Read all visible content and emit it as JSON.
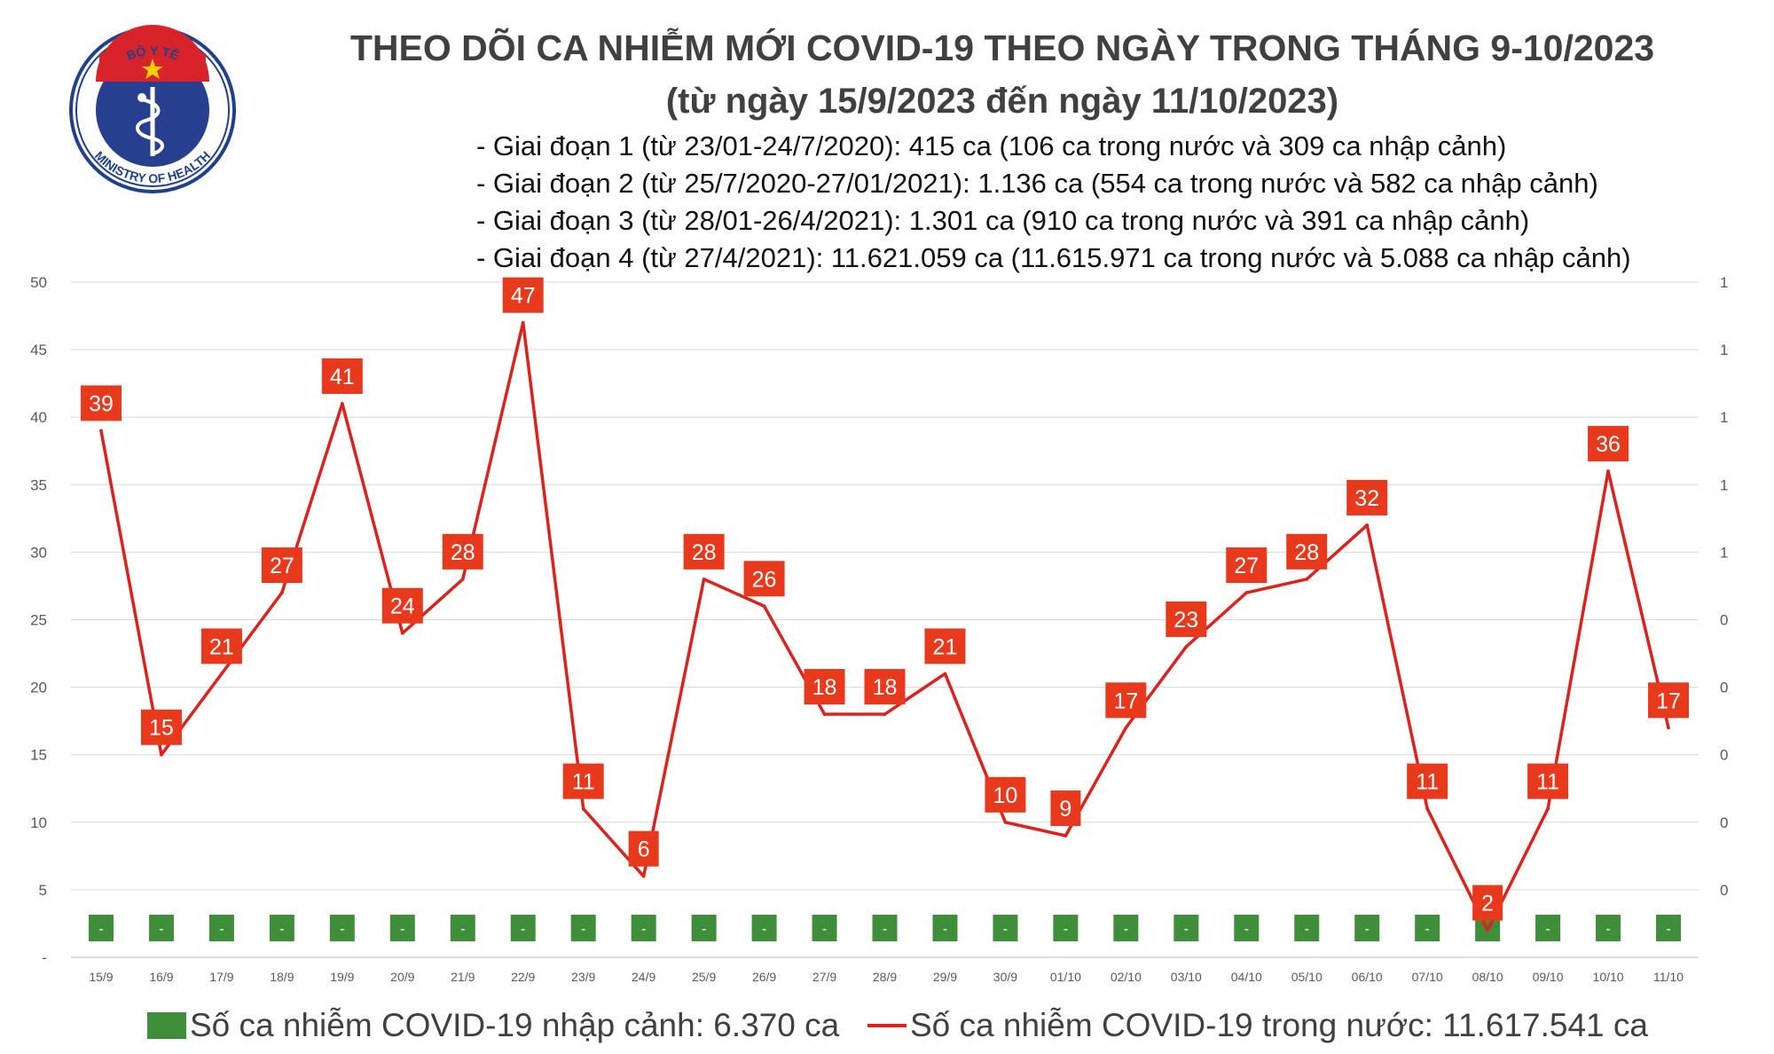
{
  "title": "THEO DÕI CA NHIỄM MỚI COVID-19 THEO NGÀY TRONG THÁNG 9-10/2023",
  "subtitle": "(từ ngày 15/9/2023 đến ngày 11/10/2023)",
  "notes": [
    "- Giai đoạn 1 (từ 23/01-24/7/2020): 415 ca (106 ca trong nước và 309 ca nhập cảnh)",
    "- Giai đoạn 2 (từ 25/7/2020-27/01/2021): 1.136 ca (554 ca trong nước và 582 ca nhập cảnh)",
    "- Giai đoạn 3 (từ 28/01-26/4/2021): 1.301 ca (910 ca trong nước và 391 ca nhập cảnh)",
    "- Giai đoạn 4 (từ 27/4/2021): 11.621.059 ca (11.615.971 ca trong nước và 5.088 ca nhập cảnh)"
  ],
  "logo": {
    "top_text": "BỘ Y TẾ",
    "bottom_text": "MINISTRY OF HEALTH",
    "colors": {
      "ring": "#1f3f8f",
      "flag": "#d9232a",
      "star": "#f5d000"
    }
  },
  "colors": {
    "line": "#e0211b",
    "badge": "#e8391d",
    "bar": "#3f8f3a",
    "grid": "#d9d9d9"
  },
  "chart_data": {
    "type": "line",
    "x": [
      "15/9",
      "16/9",
      "17/9",
      "18/9",
      "19/9",
      "20/9",
      "21/9",
      "22/9",
      "23/9",
      "24/9",
      "25/9",
      "26/9",
      "27/9",
      "28/9",
      "29/9",
      "30/9",
      "01/10",
      "02/10",
      "03/10",
      "04/10",
      "05/10",
      "06/10",
      "07/10",
      "08/10",
      "09/10",
      "10/10",
      "11/10"
    ],
    "series": [
      {
        "name": "Số ca nhiễm COVID-19 trong nước: 11.617.541 ca",
        "type": "line",
        "axis": "left",
        "values": [
          39,
          15,
          21,
          27,
          41,
          24,
          28,
          47,
          11,
          6,
          28,
          26,
          18,
          18,
          21,
          10,
          9,
          17,
          23,
          27,
          28,
          32,
          11,
          2,
          11,
          36,
          17
        ],
        "data_labels": [
          "39",
          "15",
          "21",
          "27",
          "41",
          "24",
          "28",
          "47",
          "11",
          "6",
          "28",
          "26",
          "18",
          "18",
          "21",
          "10",
          "9",
          "17",
          "23",
          "27",
          "28",
          "32",
          "11",
          "2",
          "11",
          "36",
          "17"
        ]
      },
      {
        "name": "Số ca nhiễm COVID-19 nhập cảnh: 6.370 ca",
        "type": "bar",
        "axis": "right",
        "values": [
          0,
          0,
          0,
          0,
          0,
          0,
          0,
          0,
          0,
          0,
          0,
          0,
          0,
          0,
          0,
          0,
          0,
          0,
          0,
          0,
          0,
          0,
          0,
          0,
          0,
          0,
          0
        ],
        "data_labels": [
          "-",
          "-",
          "-",
          "-",
          "-",
          "-",
          "-",
          "-",
          "-",
          "-",
          "-",
          "-",
          "-",
          "-",
          "-",
          "-",
          "-",
          "-",
          "-",
          "-",
          "-",
          "-",
          "-",
          "-",
          "-",
          "-",
          "-"
        ]
      }
    ],
    "y_left": {
      "ylim": [
        0,
        50
      ],
      "ticks": [
        "-",
        "5",
        "10",
        "15",
        "20",
        "25",
        "30",
        "35",
        "40",
        "45",
        "50"
      ]
    },
    "y_right": {
      "ticks": [
        "0",
        "0",
        "0",
        "0",
        "0",
        "1",
        "1",
        "1",
        "1",
        "1"
      ]
    },
    "grid": true,
    "legend_position": "bottom",
    "legend": [
      {
        "label": "Số ca nhiễm COVID-19 nhập cảnh: 6.370 ca",
        "marker": "square"
      },
      {
        "label": "Số ca nhiễm COVID-19 trong nước: 11.617.541 ca",
        "marker": "line"
      }
    ]
  }
}
